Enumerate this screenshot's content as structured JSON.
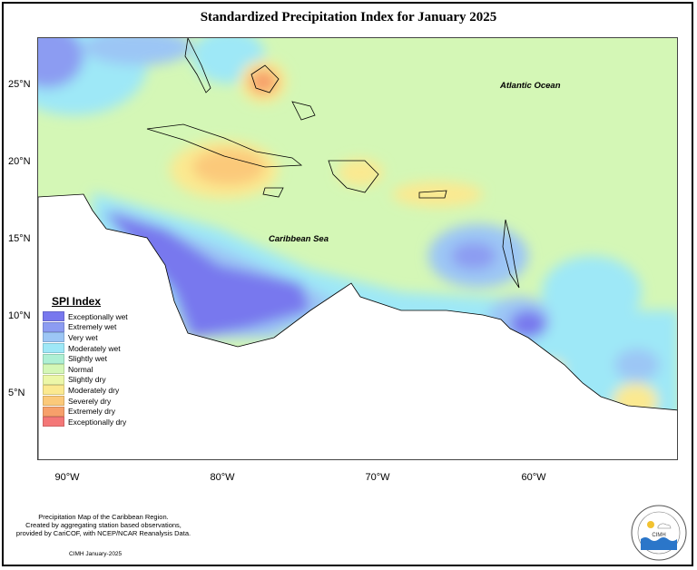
{
  "title": "Standardized Precipitation Index for January 2025",
  "map": {
    "y_ticks": [
      "25°N",
      "20°N",
      "15°N",
      "10°N",
      "5°N"
    ],
    "x_ticks": [
      "90°W",
      "80°W",
      "70°W",
      "60°W"
    ],
    "ocean_labels": {
      "atlantic": "Atlantic Ocean",
      "caribbean": "Caribbean Sea"
    },
    "background_color": "#d4f7b6"
  },
  "legend": {
    "title": "SPI Index",
    "items": [
      {
        "label": "Exceptionally wet",
        "color": "#7878ee"
      },
      {
        "label": "Extremely wet",
        "color": "#8c9cf2"
      },
      {
        "label": "Very wet",
        "color": "#9cc6f5"
      },
      {
        "label": "Moderately wet",
        "color": "#9ee8f7"
      },
      {
        "label": "Slightly wet",
        "color": "#aef0d4"
      },
      {
        "label": "Normal",
        "color": "#d4f7b6"
      },
      {
        "label": "Slightly dry",
        "color": "#ecf7a8"
      },
      {
        "label": "Moderately dry",
        "color": "#fbe990"
      },
      {
        "label": "Severely dry",
        "color": "#fbc97a"
      },
      {
        "label": "Extremely dry",
        "color": "#f7a06a"
      },
      {
        "label": "Exceptionally dry",
        "color": "#f47777"
      }
    ]
  },
  "footer": {
    "line1": "Precipitation Map of the Caribbean Region.",
    "line2": "Created by aggregating station based observations,",
    "line3": "provided by CariCOF, with NCEP/NCAR Reanalysis Data.",
    "credit": "CIMH January-2025"
  },
  "logo": {
    "text": "CIMH"
  }
}
